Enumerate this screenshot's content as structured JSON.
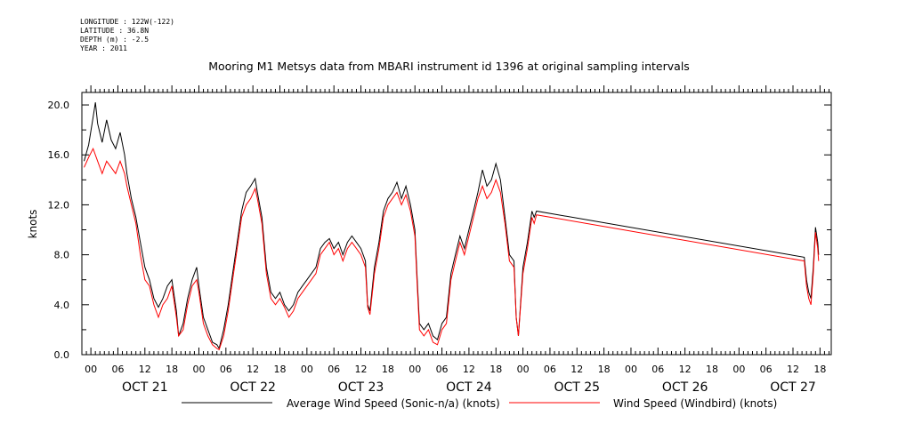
{
  "header": {
    "longitude": "LONGITUDE : 122W(-122)",
    "latitude": "LATITUDE : 36.8N",
    "depth": "DEPTH (m) : -2.5",
    "year": "YEAR : 2011"
  },
  "chart_data": {
    "type": "line",
    "title": "Mooring M1 Metsys data from MBARI instrument id 1396 at original sampling intervals",
    "ylabel": "knots",
    "xlabel": "",
    "ylim": [
      0,
      21
    ],
    "yticks": [
      0.0,
      4.0,
      8.0,
      12.0,
      16.0,
      20.0
    ],
    "ytick_labels": [
      "0.0",
      "4.0",
      "8.0",
      "12.0",
      "16.0",
      "20.0"
    ],
    "x_unit": "hours since OCT 21 00",
    "xlim": [
      -2,
      164.5
    ],
    "hour_tick_labels": [
      "00",
      "06",
      "12",
      "18",
      "00",
      "06",
      "12",
      "18",
      "00",
      "06",
      "12",
      "18",
      "00",
      "06",
      "12",
      "18",
      "00",
      "06",
      "12",
      "18",
      "00",
      "06",
      "12",
      "18",
      "00",
      "06",
      "12",
      "18"
    ],
    "day_labels": [
      "OCT 21",
      "OCT 22",
      "OCT 23",
      "OCT 24",
      "OCT 25",
      "OCT 26",
      "OCT 27"
    ],
    "grid": false,
    "legend_position": "bottom",
    "series": [
      {
        "name": "Average Wind Speed (Sonic-n/a) (knots)",
        "color": "#000000",
        "points": [
          [
            -1.5,
            15.5
          ],
          [
            -0.5,
            16.8
          ],
          [
            0.5,
            19.0
          ],
          [
            1.0,
            20.2
          ],
          [
            1.5,
            18.5
          ],
          [
            2.5,
            17.0
          ],
          [
            3.5,
            18.8
          ],
          [
            4.5,
            17.2
          ],
          [
            5.5,
            16.5
          ],
          [
            6.5,
            17.8
          ],
          [
            7.5,
            16.0
          ],
          [
            8.0,
            14.5
          ],
          [
            9.0,
            12.5
          ],
          [
            10.0,
            11.0
          ],
          [
            11.0,
            9.0
          ],
          [
            12.0,
            7.0
          ],
          [
            13.0,
            6.0
          ],
          [
            14.0,
            4.5
          ],
          [
            15.0,
            3.8
          ],
          [
            16.0,
            4.5
          ],
          [
            17.0,
            5.5
          ],
          [
            18.0,
            6.0
          ],
          [
            19.0,
            3.5
          ],
          [
            19.5,
            1.5
          ],
          [
            20.5,
            2.5
          ],
          [
            21.5,
            4.5
          ],
          [
            22.5,
            6.0
          ],
          [
            23.5,
            7.0
          ],
          [
            24.0,
            5.5
          ],
          [
            25.0,
            3.0
          ],
          [
            26.0,
            2.0
          ],
          [
            27.0,
            1.0
          ],
          [
            28.0,
            0.8
          ],
          [
            28.5,
            0.5
          ],
          [
            29.5,
            2.0
          ],
          [
            30.5,
            4.0
          ],
          [
            31.5,
            6.5
          ],
          [
            32.5,
            9.0
          ],
          [
            33.5,
            11.5
          ],
          [
            34.5,
            13.0
          ],
          [
            35.5,
            13.5
          ],
          [
            36.5,
            14.1
          ],
          [
            37.0,
            13.0
          ],
          [
            38.0,
            11.0
          ],
          [
            39.0,
            7.0
          ],
          [
            40.0,
            5.0
          ],
          [
            41.0,
            4.5
          ],
          [
            42.0,
            5.0
          ],
          [
            43.0,
            4.0
          ],
          [
            44.0,
            3.5
          ],
          [
            45.0,
            4.0
          ],
          [
            46.0,
            5.0
          ],
          [
            47.0,
            5.5
          ],
          [
            48.0,
            6.0
          ],
          [
            49.0,
            6.5
          ],
          [
            50.0,
            7.0
          ],
          [
            51.0,
            8.5
          ],
          [
            52.0,
            9.0
          ],
          [
            53.0,
            9.3
          ],
          [
            54.0,
            8.5
          ],
          [
            55.0,
            9.0
          ],
          [
            56.0,
            8.0
          ],
          [
            57.0,
            9.0
          ],
          [
            58.0,
            9.5
          ],
          [
            59.0,
            9.0
          ],
          [
            60.0,
            8.5
          ],
          [
            61.0,
            7.5
          ],
          [
            61.5,
            4.0
          ],
          [
            62.0,
            3.5
          ],
          [
            63.0,
            7.0
          ],
          [
            64.0,
            9.0
          ],
          [
            65.0,
            11.5
          ],
          [
            66.0,
            12.5
          ],
          [
            67.0,
            13.0
          ],
          [
            68.0,
            13.8
          ],
          [
            69.0,
            12.5
          ],
          [
            70.0,
            13.5
          ],
          [
            71.0,
            12.0
          ],
          [
            72.0,
            10.0
          ],
          [
            72.5,
            6.0
          ],
          [
            73.0,
            2.5
          ],
          [
            74.0,
            2.0
          ],
          [
            75.0,
            2.5
          ],
          [
            76.0,
            1.5
          ],
          [
            77.0,
            1.2
          ],
          [
            78.0,
            2.5
          ],
          [
            79.0,
            3.0
          ],
          [
            80.0,
            6.5
          ],
          [
            81.0,
            8.0
          ],
          [
            82.0,
            9.5
          ],
          [
            83.0,
            8.5
          ],
          [
            84.0,
            10.0
          ],
          [
            85.0,
            11.5
          ],
          [
            86.0,
            13.0
          ],
          [
            87.0,
            14.8
          ],
          [
            88.0,
            13.5
          ],
          [
            89.0,
            14.0
          ],
          [
            90.0,
            15.3
          ],
          [
            91.0,
            14.0
          ],
          [
            92.0,
            11.0
          ],
          [
            93.0,
            8.0
          ],
          [
            94.0,
            7.5
          ],
          [
            94.5,
            3.0
          ],
          [
            95.0,
            1.5
          ],
          [
            96.0,
            7.0
          ],
          [
            97.0,
            9.0
          ],
          [
            98.0,
            11.5
          ],
          [
            98.5,
            11.0
          ],
          [
            99.0,
            11.5
          ],
          [
            158.5,
            7.8
          ],
          [
            159.0,
            6.0
          ],
          [
            159.5,
            5.0
          ],
          [
            160.0,
            4.5
          ],
          [
            160.5,
            7.0
          ],
          [
            161.0,
            10.2
          ],
          [
            161.5,
            9.0
          ],
          [
            161.7,
            8.0
          ]
        ]
      },
      {
        "name": "Wind Speed (Windbird) (knots)",
        "color": "#ff0000",
        "points": [
          [
            -1.5,
            15.0
          ],
          [
            -0.5,
            15.8
          ],
          [
            0.5,
            16.5
          ],
          [
            1.5,
            15.5
          ],
          [
            2.5,
            14.5
          ],
          [
            3.5,
            15.5
          ],
          [
            4.5,
            15.0
          ],
          [
            5.5,
            14.5
          ],
          [
            6.5,
            15.5
          ],
          [
            7.5,
            14.5
          ],
          [
            8.0,
            13.5
          ],
          [
            9.0,
            12.0
          ],
          [
            10.0,
            10.5
          ],
          [
            11.0,
            8.0
          ],
          [
            12.0,
            6.0
          ],
          [
            13.0,
            5.5
          ],
          [
            14.0,
            4.0
          ],
          [
            15.0,
            3.0
          ],
          [
            16.0,
            4.0
          ],
          [
            17.0,
            4.5
          ],
          [
            18.0,
            5.5
          ],
          [
            19.0,
            3.0
          ],
          [
            19.5,
            1.5
          ],
          [
            20.5,
            2.0
          ],
          [
            21.5,
            4.0
          ],
          [
            22.5,
            5.5
          ],
          [
            23.5,
            6.0
          ],
          [
            24.0,
            5.0
          ],
          [
            25.0,
            2.5
          ],
          [
            26.0,
            1.5
          ],
          [
            27.0,
            0.8
          ],
          [
            28.0,
            0.5
          ],
          [
            28.5,
            0.4
          ],
          [
            29.5,
            1.5
          ],
          [
            30.5,
            3.5
          ],
          [
            31.5,
            6.0
          ],
          [
            32.5,
            8.5
          ],
          [
            33.5,
            11.0
          ],
          [
            34.5,
            12.0
          ],
          [
            35.5,
            12.5
          ],
          [
            36.5,
            13.3
          ],
          [
            37.0,
            12.5
          ],
          [
            38.0,
            10.5
          ],
          [
            39.0,
            6.5
          ],
          [
            40.0,
            4.5
          ],
          [
            41.0,
            4.0
          ],
          [
            42.0,
            4.5
          ],
          [
            43.0,
            3.8
          ],
          [
            44.0,
            3.0
          ],
          [
            45.0,
            3.5
          ],
          [
            46.0,
            4.5
          ],
          [
            47.0,
            5.0
          ],
          [
            48.0,
            5.5
          ],
          [
            49.0,
            6.0
          ],
          [
            50.0,
            6.5
          ],
          [
            51.0,
            8.0
          ],
          [
            52.0,
            8.5
          ],
          [
            53.0,
            9.0
          ],
          [
            54.0,
            8.0
          ],
          [
            55.0,
            8.5
          ],
          [
            56.0,
            7.5
          ],
          [
            57.0,
            8.5
          ],
          [
            58.0,
            9.0
          ],
          [
            59.0,
            8.5
          ],
          [
            60.0,
            8.0
          ],
          [
            61.0,
            7.0
          ],
          [
            61.5,
            3.8
          ],
          [
            62.0,
            3.2
          ],
          [
            63.0,
            6.5
          ],
          [
            64.0,
            8.5
          ],
          [
            65.0,
            11.0
          ],
          [
            66.0,
            12.0
          ],
          [
            67.0,
            12.5
          ],
          [
            68.0,
            13.0
          ],
          [
            69.0,
            12.0
          ],
          [
            70.0,
            12.8
          ],
          [
            71.0,
            11.5
          ],
          [
            72.0,
            9.5
          ],
          [
            72.5,
            5.5
          ],
          [
            73.0,
            2.0
          ],
          [
            74.0,
            1.5
          ],
          [
            75.0,
            2.0
          ],
          [
            76.0,
            1.0
          ],
          [
            77.0,
            0.8
          ],
          [
            78.0,
            2.0
          ],
          [
            79.0,
            2.5
          ],
          [
            80.0,
            6.0
          ],
          [
            81.0,
            7.5
          ],
          [
            82.0,
            9.0
          ],
          [
            83.0,
            8.0
          ],
          [
            84.0,
            9.5
          ],
          [
            85.0,
            11.0
          ],
          [
            86.0,
            12.5
          ],
          [
            87.0,
            13.5
          ],
          [
            88.0,
            12.5
          ],
          [
            89.0,
            13.0
          ],
          [
            90.0,
            14.0
          ],
          [
            91.0,
            13.0
          ],
          [
            92.0,
            10.5
          ],
          [
            93.0,
            7.5
          ],
          [
            94.0,
            7.0
          ],
          [
            94.5,
            3.0
          ],
          [
            95.0,
            1.5
          ],
          [
            96.0,
            6.5
          ],
          [
            97.0,
            8.5
          ],
          [
            98.0,
            11.0
          ],
          [
            98.5,
            10.5
          ],
          [
            99.0,
            11.2
          ],
          [
            158.5,
            7.5
          ],
          [
            159.0,
            5.5
          ],
          [
            159.5,
            4.5
          ],
          [
            160.0,
            4.0
          ],
          [
            160.5,
            6.5
          ],
          [
            161.0,
            9.8
          ],
          [
            161.5,
            8.5
          ],
          [
            161.7,
            7.5
          ]
        ]
      }
    ]
  }
}
